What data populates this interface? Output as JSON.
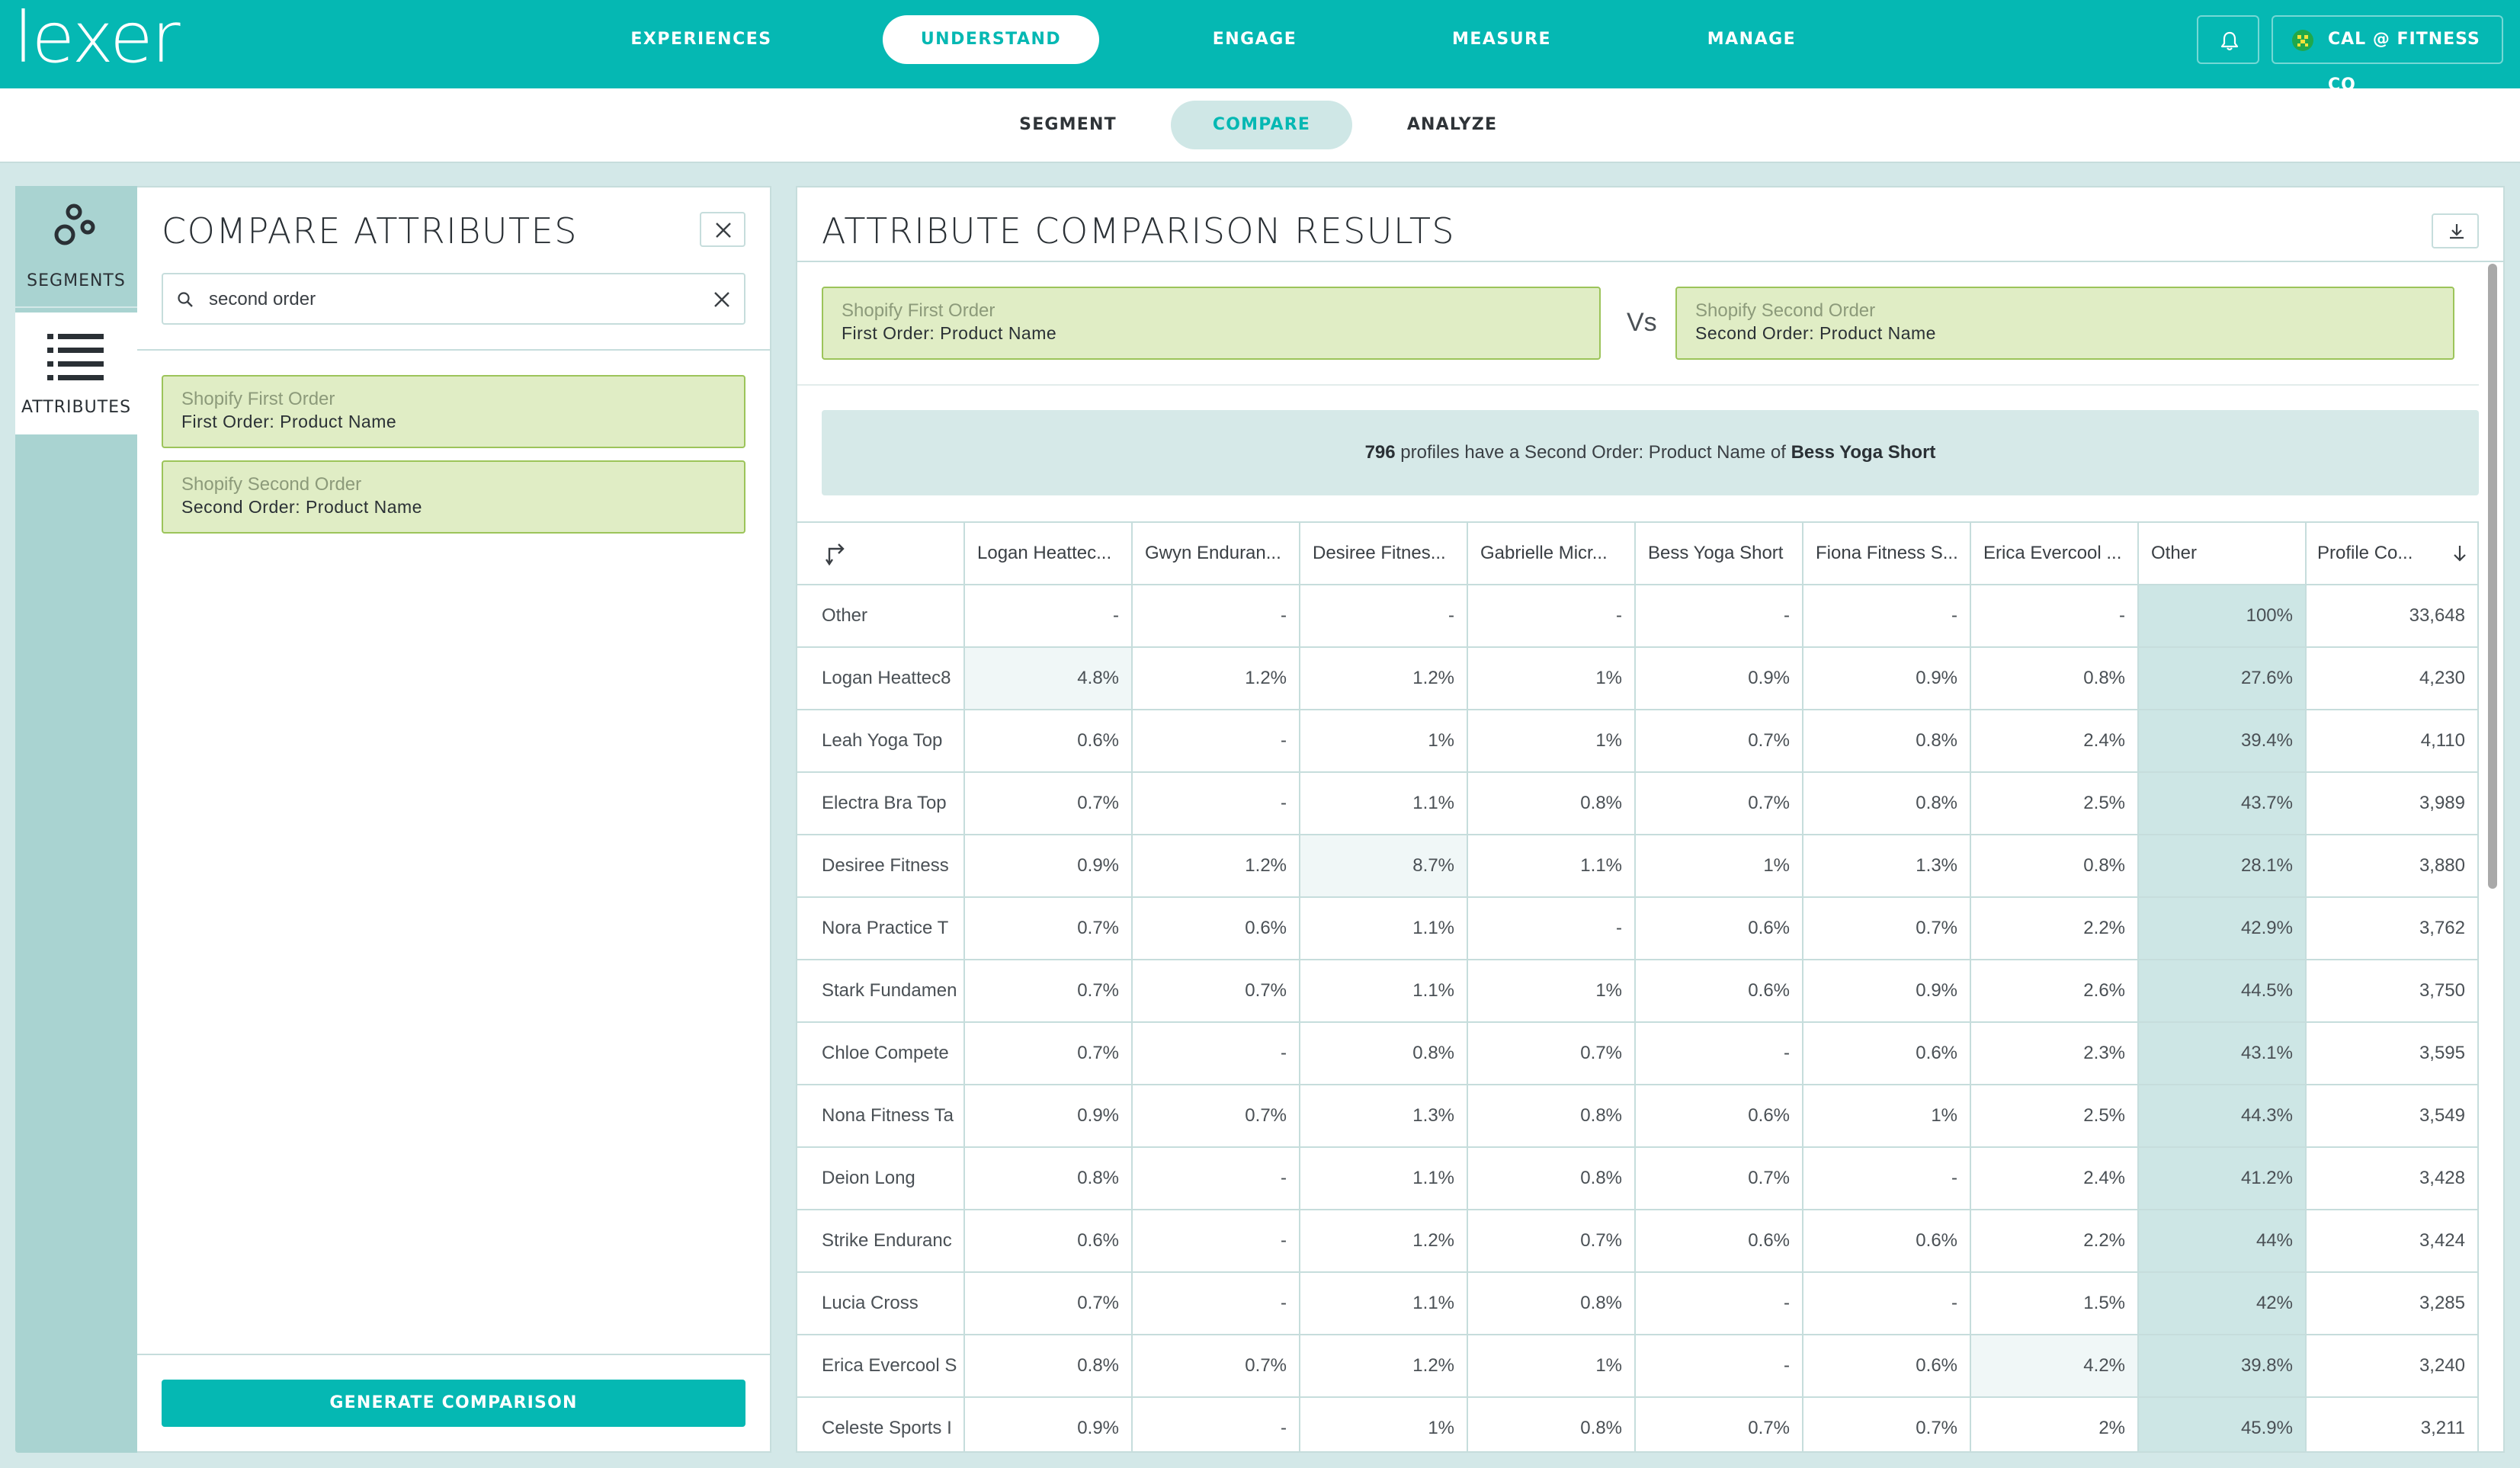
{
  "brand": {
    "logo_text": "lexer",
    "accent": "#05b8b3"
  },
  "topnav": {
    "items": [
      {
        "label": "EXPERIENCES",
        "active": false
      },
      {
        "label": "UNDERSTAND",
        "active": true
      },
      {
        "label": "ENGAGE",
        "active": false
      },
      {
        "label": "MEASURE",
        "active": false
      },
      {
        "label": "MANAGE",
        "active": false
      }
    ],
    "account_label": "CAL @ FITNESS CO",
    "bell_icon": "bell-icon"
  },
  "subnav": {
    "items": [
      {
        "label": "SEGMENT",
        "active": false
      },
      {
        "label": "COMPARE",
        "active": true
      },
      {
        "label": "ANALYZE",
        "active": false
      }
    ]
  },
  "rail": {
    "segments_label": "SEGMENTS",
    "attributes_label": "ATTRIBUTES"
  },
  "compare_panel": {
    "title": "COMPARE ATTRIBUTES",
    "search_value": "second order",
    "cards": [
      {
        "source": "Shopify First Order",
        "name": "First Order: Product Name"
      },
      {
        "source": "Shopify Second Order",
        "name": "Second Order: Product Name"
      }
    ],
    "generate_label": "GENERATE COMPARISON"
  },
  "results": {
    "title": "ATTRIBUTE COMPARISON RESULTS",
    "left": {
      "source": "Shopify First Order",
      "name": "First Order: Product Name"
    },
    "vs_label": "Vs",
    "right": {
      "source": "Shopify Second Order",
      "name": "Second Order: Product Name"
    },
    "summary": {
      "count": "796",
      "middle": " profiles have a Second Order: Product Name of ",
      "value": "Bess Yoga Short"
    },
    "columns": [
      "Logan Heattec...",
      "Gwyn Enduran...",
      "Desiree Fitnes...",
      "Gabrielle Micr...",
      "Bess Yoga Short",
      "Fiona Fitness S...",
      "Erica Evercool ...",
      "Other",
      "Profile Co..."
    ],
    "rows": [
      {
        "label": "Other",
        "cells": [
          "-",
          "-",
          "-",
          "-",
          "-",
          "-",
          "-",
          "100%",
          "33,648"
        ]
      },
      {
        "label": "Logan Heattec8",
        "cells": [
          "4.8%",
          "1.2%",
          "1.2%",
          "1%",
          "0.9%",
          "0.9%",
          "0.8%",
          "27.6%",
          "4,230"
        ]
      },
      {
        "label": "Leah Yoga Top",
        "cells": [
          "0.6%",
          "-",
          "1%",
          "1%",
          "0.7%",
          "0.8%",
          "2.4%",
          "39.4%",
          "4,110"
        ]
      },
      {
        "label": "Electra Bra Top",
        "cells": [
          "0.7%",
          "-",
          "1.1%",
          "0.8%",
          "0.7%",
          "0.8%",
          "2.5%",
          "43.7%",
          "3,989"
        ]
      },
      {
        "label": "Desiree Fitness",
        "cells": [
          "0.9%",
          "1.2%",
          "8.7%",
          "1.1%",
          "1%",
          "1.3%",
          "0.8%",
          "28.1%",
          "3,880"
        ]
      },
      {
        "label": "Nora Practice T",
        "cells": [
          "0.7%",
          "0.6%",
          "1.1%",
          "-",
          "0.6%",
          "0.7%",
          "2.2%",
          "42.9%",
          "3,762"
        ]
      },
      {
        "label": "Stark Fundamen",
        "cells": [
          "0.7%",
          "0.7%",
          "1.1%",
          "1%",
          "0.6%",
          "0.9%",
          "2.6%",
          "44.5%",
          "3,750"
        ]
      },
      {
        "label": "Chloe Compete",
        "cells": [
          "0.7%",
          "-",
          "0.8%",
          "0.7%",
          "-",
          "0.6%",
          "2.3%",
          "43.1%",
          "3,595"
        ]
      },
      {
        "label": "Nona Fitness Ta",
        "cells": [
          "0.9%",
          "0.7%",
          "1.3%",
          "0.8%",
          "0.6%",
          "1%",
          "2.5%",
          "44.3%",
          "3,549"
        ]
      },
      {
        "label": "Deion Long",
        "cells": [
          "0.8%",
          "-",
          "1.1%",
          "0.8%",
          "0.7%",
          "-",
          "2.4%",
          "41.2%",
          "3,428"
        ]
      },
      {
        "label": "Strike Enduranc",
        "cells": [
          "0.6%",
          "-",
          "1.2%",
          "0.7%",
          "0.6%",
          "0.6%",
          "2.2%",
          "44%",
          "3,424"
        ]
      },
      {
        "label": "Lucia Cross",
        "cells": [
          "0.7%",
          "-",
          "1.1%",
          "0.8%",
          "-",
          "-",
          "1.5%",
          "42%",
          "3,285"
        ]
      },
      {
        "label": "Erica Evercool S",
        "cells": [
          "0.8%",
          "0.7%",
          "1.2%",
          "1%",
          "-",
          "0.6%",
          "4.2%",
          "39.8%",
          "3,240"
        ]
      },
      {
        "label": "Celeste Sports I",
        "cells": [
          "0.9%",
          "-",
          "1%",
          "0.8%",
          "0.7%",
          "0.7%",
          "2%",
          "45.9%",
          "3,211"
        ]
      }
    ]
  }
}
